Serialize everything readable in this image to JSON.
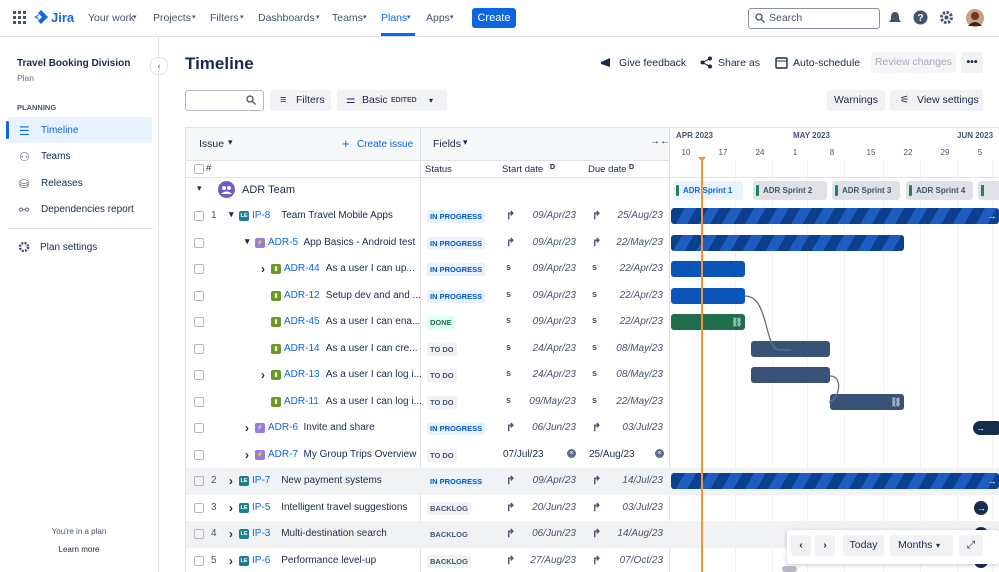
{
  "nav": {
    "logo": "Jira",
    "items": [
      "Your work",
      "Projects",
      "Filters",
      "Dashboards",
      "Teams",
      "Plans",
      "Apps"
    ],
    "create": "Create",
    "search": "Search"
  },
  "sidebar": {
    "title": "Travel Booking Division",
    "subtitle": "Plan",
    "section": "PLANNING",
    "items": [
      "Timeline",
      "Teams",
      "Releases",
      "Dependencies report"
    ],
    "settings": "Plan settings",
    "footer_text": "You're in a plan",
    "footer_link": "Learn more"
  },
  "header": {
    "title": "Timeline",
    "actions": [
      "Give feedback",
      "Share as",
      "Auto-schedule",
      "Review changes"
    ]
  },
  "toolbar": {
    "filters": "Filters",
    "view": "Basic",
    "view_badge": "EDITED",
    "warnings": "Warnings",
    "view_settings": "View settings"
  },
  "table": {
    "issue_header": "Issue",
    "create": "Create issue",
    "fields": "Fields",
    "hash": "#",
    "columns": [
      "Status",
      "Start date",
      "Due date"
    ],
    "date_badge": "D",
    "initiative_icon": "LE",
    "team": "ADR Team",
    "rows": [
      {
        "num": "1",
        "key": "IP-8",
        "summary": "Team Travel Mobile Apps",
        "status": "IN PROGRESS",
        "start": "09/Apr/23",
        "due": "25/Aug/23"
      },
      {
        "num": null,
        "key": "ADR-5",
        "summary": "App Basics - Android test",
        "status": "IN PROGRESS",
        "start": "09/Apr/23",
        "due": "22/May/23"
      },
      {
        "num": null,
        "key": "ADR-44",
        "summary": "As a user I can up...",
        "status": "IN PROGRESS",
        "start": "09/Apr/23",
        "due": "22/Apr/23"
      },
      {
        "num": null,
        "key": "ADR-12",
        "summary": "Setup dev and and ...",
        "status": "IN PROGRESS",
        "start": "09/Apr/23",
        "due": "22/Apr/23"
      },
      {
        "num": null,
        "key": "ADR-45",
        "summary": "As a user I can ena...",
        "status": "DONE",
        "start": "09/Apr/23",
        "due": "22/Apr/23"
      },
      {
        "num": null,
        "key": "ADR-14",
        "summary": "As a user I can cre...",
        "status": "TO DO",
        "start": "24/Apr/23",
        "due": "08/May/23"
      },
      {
        "num": null,
        "key": "ADR-13",
        "summary": "As a user I can log i...",
        "status": "TO DO",
        "start": "24/Apr/23",
        "due": "08/May/23"
      },
      {
        "num": null,
        "key": "ADR-11",
        "summary": "As a user I can log i...",
        "status": "TO DO",
        "start": "09/May/23",
        "due": "22/May/23"
      },
      {
        "num": null,
        "key": "ADR-6",
        "summary": "Invite and share",
        "status": "IN PROGRESS",
        "start": "06/Jun/23",
        "due": "03/Jul/23"
      },
      {
        "num": null,
        "key": "ADR-7",
        "summary": "My Group Trips Overview",
        "status": "TO DO",
        "start": "07/Jul/23",
        "due": "25/Aug/23"
      },
      {
        "num": "2",
        "key": "IP-7",
        "summary": "New payment systems",
        "status": "IN PROGRESS",
        "start": "09/Apr/23",
        "due": "14/Jul/23"
      },
      {
        "num": "3",
        "key": "IP-5",
        "summary": "Intelligent travel suggestions",
        "status": "BACKLOG",
        "start": "20/Jun/23",
        "due": "03/Jul/23"
      },
      {
        "num": "4",
        "key": "IP-3",
        "summary": "Multi-destination search",
        "status": "BACKLOG",
        "start": "06/Jun/23",
        "due": "14/Aug/23"
      },
      {
        "num": "5",
        "key": "IP-6",
        "summary": "Performance level-up",
        "status": "BACKLOG",
        "start": "27/Aug/23",
        "due": "07/Oct/23"
      }
    ]
  },
  "timeline": {
    "months": [
      "APR 2023",
      "MAY 2023",
      "JUN 2023"
    ],
    "days": [
      "10",
      "17",
      "24",
      "1",
      "8",
      "15",
      "22",
      "29",
      "5"
    ],
    "sprints": [
      "ADR Sprint 1",
      "ADR Sprint 2",
      "ADR Sprint 3",
      "ADR Sprint 4"
    ],
    "today": "Today",
    "scale": "Months"
  }
}
